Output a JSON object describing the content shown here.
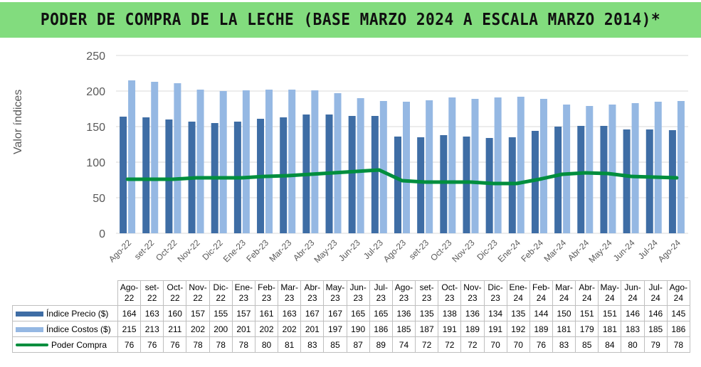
{
  "title": "PODER DE COMPRA DE LA LECHE (BASE MARZO 2024 A ESCALA MARZO 2014)*",
  "chart_data": {
    "type": "bar",
    "ylabel": "Valor índices",
    "ylim": [
      0,
      250
    ],
    "yticks": [
      0,
      50,
      100,
      150,
      200,
      250
    ],
    "grid": true,
    "legend_placement": "data-table",
    "categories": [
      "Ago-22",
      "set-22",
      "Oct-22",
      "Nov-22",
      "Dic-22",
      "Ene-23",
      "Feb-23",
      "Mar-23",
      "Abr-23",
      "May-23",
      "Jun-23",
      "Jul-23",
      "Ago-23",
      "set-23",
      "Oct-23",
      "Nov-23",
      "Dic-23",
      "Ene-24",
      "Feb-24",
      "Mar-24",
      "Abr-24",
      "May-24",
      "Jun-24",
      "Jul-24",
      "Ago-24"
    ],
    "table_headers": [
      [
        "Ago-",
        "22"
      ],
      [
        "set-",
        "22"
      ],
      [
        "Oct-",
        "22"
      ],
      [
        "Nov-",
        "22"
      ],
      [
        "Dic-",
        "22"
      ],
      [
        "Ene-",
        "23"
      ],
      [
        "Feb-",
        "23"
      ],
      [
        "Mar-",
        "23"
      ],
      [
        "Abr-",
        "23"
      ],
      [
        "May-",
        "23"
      ],
      [
        "Jun-",
        "23"
      ],
      [
        "Jul-",
        "23"
      ],
      [
        "Ago-",
        "23"
      ],
      [
        "set-",
        "23"
      ],
      [
        "Oct-",
        "23"
      ],
      [
        "Nov-",
        "23"
      ],
      [
        "Dic-",
        "23"
      ],
      [
        "Ene-",
        "24"
      ],
      [
        "Feb-",
        "24"
      ],
      [
        "Mar-",
        "24"
      ],
      [
        "Abr-",
        "24"
      ],
      [
        "May-",
        "24"
      ],
      [
        "Jun-",
        "24"
      ],
      [
        "Jul-",
        "24"
      ],
      [
        "Ago-",
        "24"
      ]
    ],
    "series": [
      {
        "name": "Índice Precio ($)",
        "kind": "bar",
        "color": "#3e6da5",
        "values": [
          164,
          163,
          160,
          157,
          155,
          157,
          161,
          163,
          167,
          167,
          165,
          165,
          136,
          135,
          138,
          136,
          134,
          135,
          144,
          150,
          151,
          151,
          146,
          146,
          145
        ]
      },
      {
        "name": "Índice Costos ($)",
        "kind": "bar",
        "color": "#95b8e3",
        "values": [
          215,
          213,
          211,
          202,
          200,
          201,
          202,
          202,
          201,
          197,
          190,
          186,
          185,
          187,
          191,
          189,
          191,
          192,
          189,
          181,
          179,
          181,
          183,
          185,
          186
        ]
      },
      {
        "name": "Poder Compra",
        "kind": "line",
        "color": "#008e3e",
        "values": [
          76,
          76,
          76,
          78,
          78,
          78,
          80,
          81,
          83,
          85,
          87,
          89,
          74,
          72,
          72,
          72,
          70,
          70,
          76,
          83,
          85,
          84,
          80,
          79,
          78
        ]
      }
    ]
  }
}
